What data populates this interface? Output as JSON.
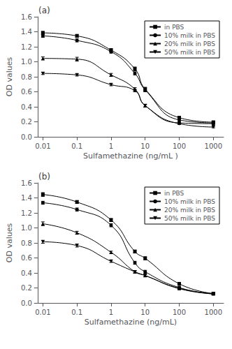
{
  "chart_data": [
    {
      "type": "line",
      "title": "(a)",
      "xlabel": "Sulfamethazine (ng/mL )",
      "ylabel": "OD values",
      "log": "x",
      "grid": false,
      "legend": "upper right",
      "xlim": [
        0.007,
        2000
      ],
      "xticks": [
        0.01,
        0.1,
        1,
        10,
        100,
        1000
      ],
      "ylim": [
        0.0,
        1.6
      ],
      "yticks": [
        {
          "value": 0.0,
          "label": "0.0"
        },
        0.2,
        0.4,
        0.6,
        0.8,
        {
          "value": 1.0,
          "label": "1.0"
        },
        1.2,
        1.4,
        1.6
      ],
      "x": [
        0.01,
        0.1,
        1,
        5,
        10,
        100,
        1000
      ],
      "series": [
        {
          "name": "in PBS",
          "color": "#000000",
          "marker": "square",
          "values": [
            1.385,
            1.345,
            1.155,
            0.905,
            0.635,
            0.255,
            0.195
          ],
          "yerr": [
            0.02,
            0.02,
            0.02,
            0.025,
            0.025,
            0.02,
            0.015
          ]
        },
        {
          "name": "10% milk in PBS",
          "color": "#000000",
          "marker": "circle",
          "values": [
            1.345,
            1.285,
            1.135,
            0.845,
            0.625,
            0.225,
            0.185
          ],
          "yerr": [
            0.02,
            0.02,
            0.02,
            0.02,
            0.025,
            0.02,
            0.015
          ]
        },
        {
          "name": "20% milk in PBS",
          "color": "#000000",
          "marker": "triangle-up",
          "values": [
            1.045,
            1.035,
            0.825,
            0.635,
            0.415,
            0.185,
            0.175
          ],
          "yerr": [
            0.02,
            0.025,
            0.02,
            0.02,
            0.02,
            0.015,
            0.015
          ]
        },
        {
          "name": "50% milk in PBS",
          "color": "#000000",
          "marker": "triangle-down",
          "values": [
            0.845,
            0.825,
            0.695,
            0.615,
            0.415,
            0.175,
            0.13
          ],
          "yerr": [
            0.015,
            0.015,
            0.015,
            0.015,
            0.015,
            0.01,
            0.01
          ]
        }
      ]
    },
    {
      "type": "line",
      "title": "(b)",
      "xlabel": "Sulfamethazine (ng/mL)",
      "ylabel": "OD values",
      "log": "x",
      "grid": false,
      "legend": "upper right",
      "xlim": [
        0.007,
        2000
      ],
      "xticks": [
        0.01,
        0.1,
        1,
        10,
        100,
        1000
      ],
      "ylim": [
        0.0,
        1.6
      ],
      "yticks": [
        {
          "value": 0.0,
          "label": "0.0"
        },
        0.2,
        0.4,
        0.6,
        0.8,
        {
          "value": 1.0,
          "label": "1.0"
        },
        1.2,
        1.4,
        1.6
      ],
      "x": [
        0.01,
        0.1,
        1,
        5,
        10,
        100,
        1000
      ],
      "series": [
        {
          "name": "in PBS",
          "color": "#000000",
          "marker": "square",
          "values": [
            1.445,
            1.345,
            1.105,
            0.685,
            0.595,
            0.255,
            0.125
          ],
          "yerr": [
            0.025,
            0.02,
            0.02,
            0.02,
            0.02,
            0.02,
            0.015
          ]
        },
        {
          "name": "10% milk in PBS",
          "color": "#000000",
          "marker": "circle",
          "values": [
            1.335,
            1.245,
            1.035,
            0.535,
            0.415,
            0.205,
            0.125
          ],
          "yerr": [
            0.02,
            0.02,
            0.02,
            0.02,
            0.02,
            0.015,
            0.015
          ]
        },
        {
          "name": "20% milk in PBS",
          "color": "#000000",
          "marker": "triangle-up",
          "values": [
            1.055,
            0.935,
            0.675,
            0.415,
            0.365,
            0.195,
            0.12
          ],
          "yerr": [
            0.025,
            0.02,
            0.015,
            0.015,
            0.015,
            0.015,
            0.01
          ]
        },
        {
          "name": "50% milk in PBS",
          "color": "#000000",
          "marker": "triangle-down",
          "values": [
            0.815,
            0.765,
            0.555,
            0.415,
            0.365,
            0.19,
            0.12
          ],
          "yerr": [
            0.02,
            0.02,
            0.015,
            0.015,
            0.015,
            0.015,
            0.01
          ]
        }
      ]
    }
  ]
}
